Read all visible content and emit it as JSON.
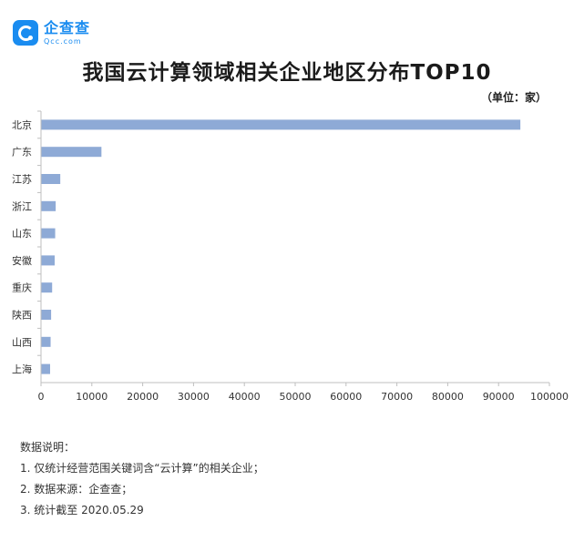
{
  "logo": {
    "name": "企查查",
    "sub": "Qcc.com"
  },
  "chart_data": {
    "type": "bar",
    "orientation": "horizontal",
    "title": "我国云计算领域相关企业地区分布TOP10",
    "unit": "（单位：家）",
    "categories": [
      "北京",
      "广东",
      "江苏",
      "浙江",
      "山东",
      "安徽",
      "重庆",
      "陕西",
      "山西",
      "上海"
    ],
    "values": [
      94200,
      11800,
      3700,
      2800,
      2700,
      2600,
      2100,
      1900,
      1800,
      1700
    ],
    "xlim": [
      0,
      100000
    ],
    "xticks": [
      "0",
      "10000",
      "20000",
      "30000",
      "40000",
      "50000",
      "60000",
      "70000",
      "80000",
      "90000",
      "100000"
    ],
    "bar_color": "#8eaad6",
    "xlabel": "",
    "ylabel": ""
  },
  "notes": {
    "heading": "数据说明：",
    "items": [
      "1. 仅统计经营范围关键词含“云计算”的相关企业；",
      "2. 数据来源：企查查；",
      "3. 统计截至 2020.05.29"
    ]
  }
}
